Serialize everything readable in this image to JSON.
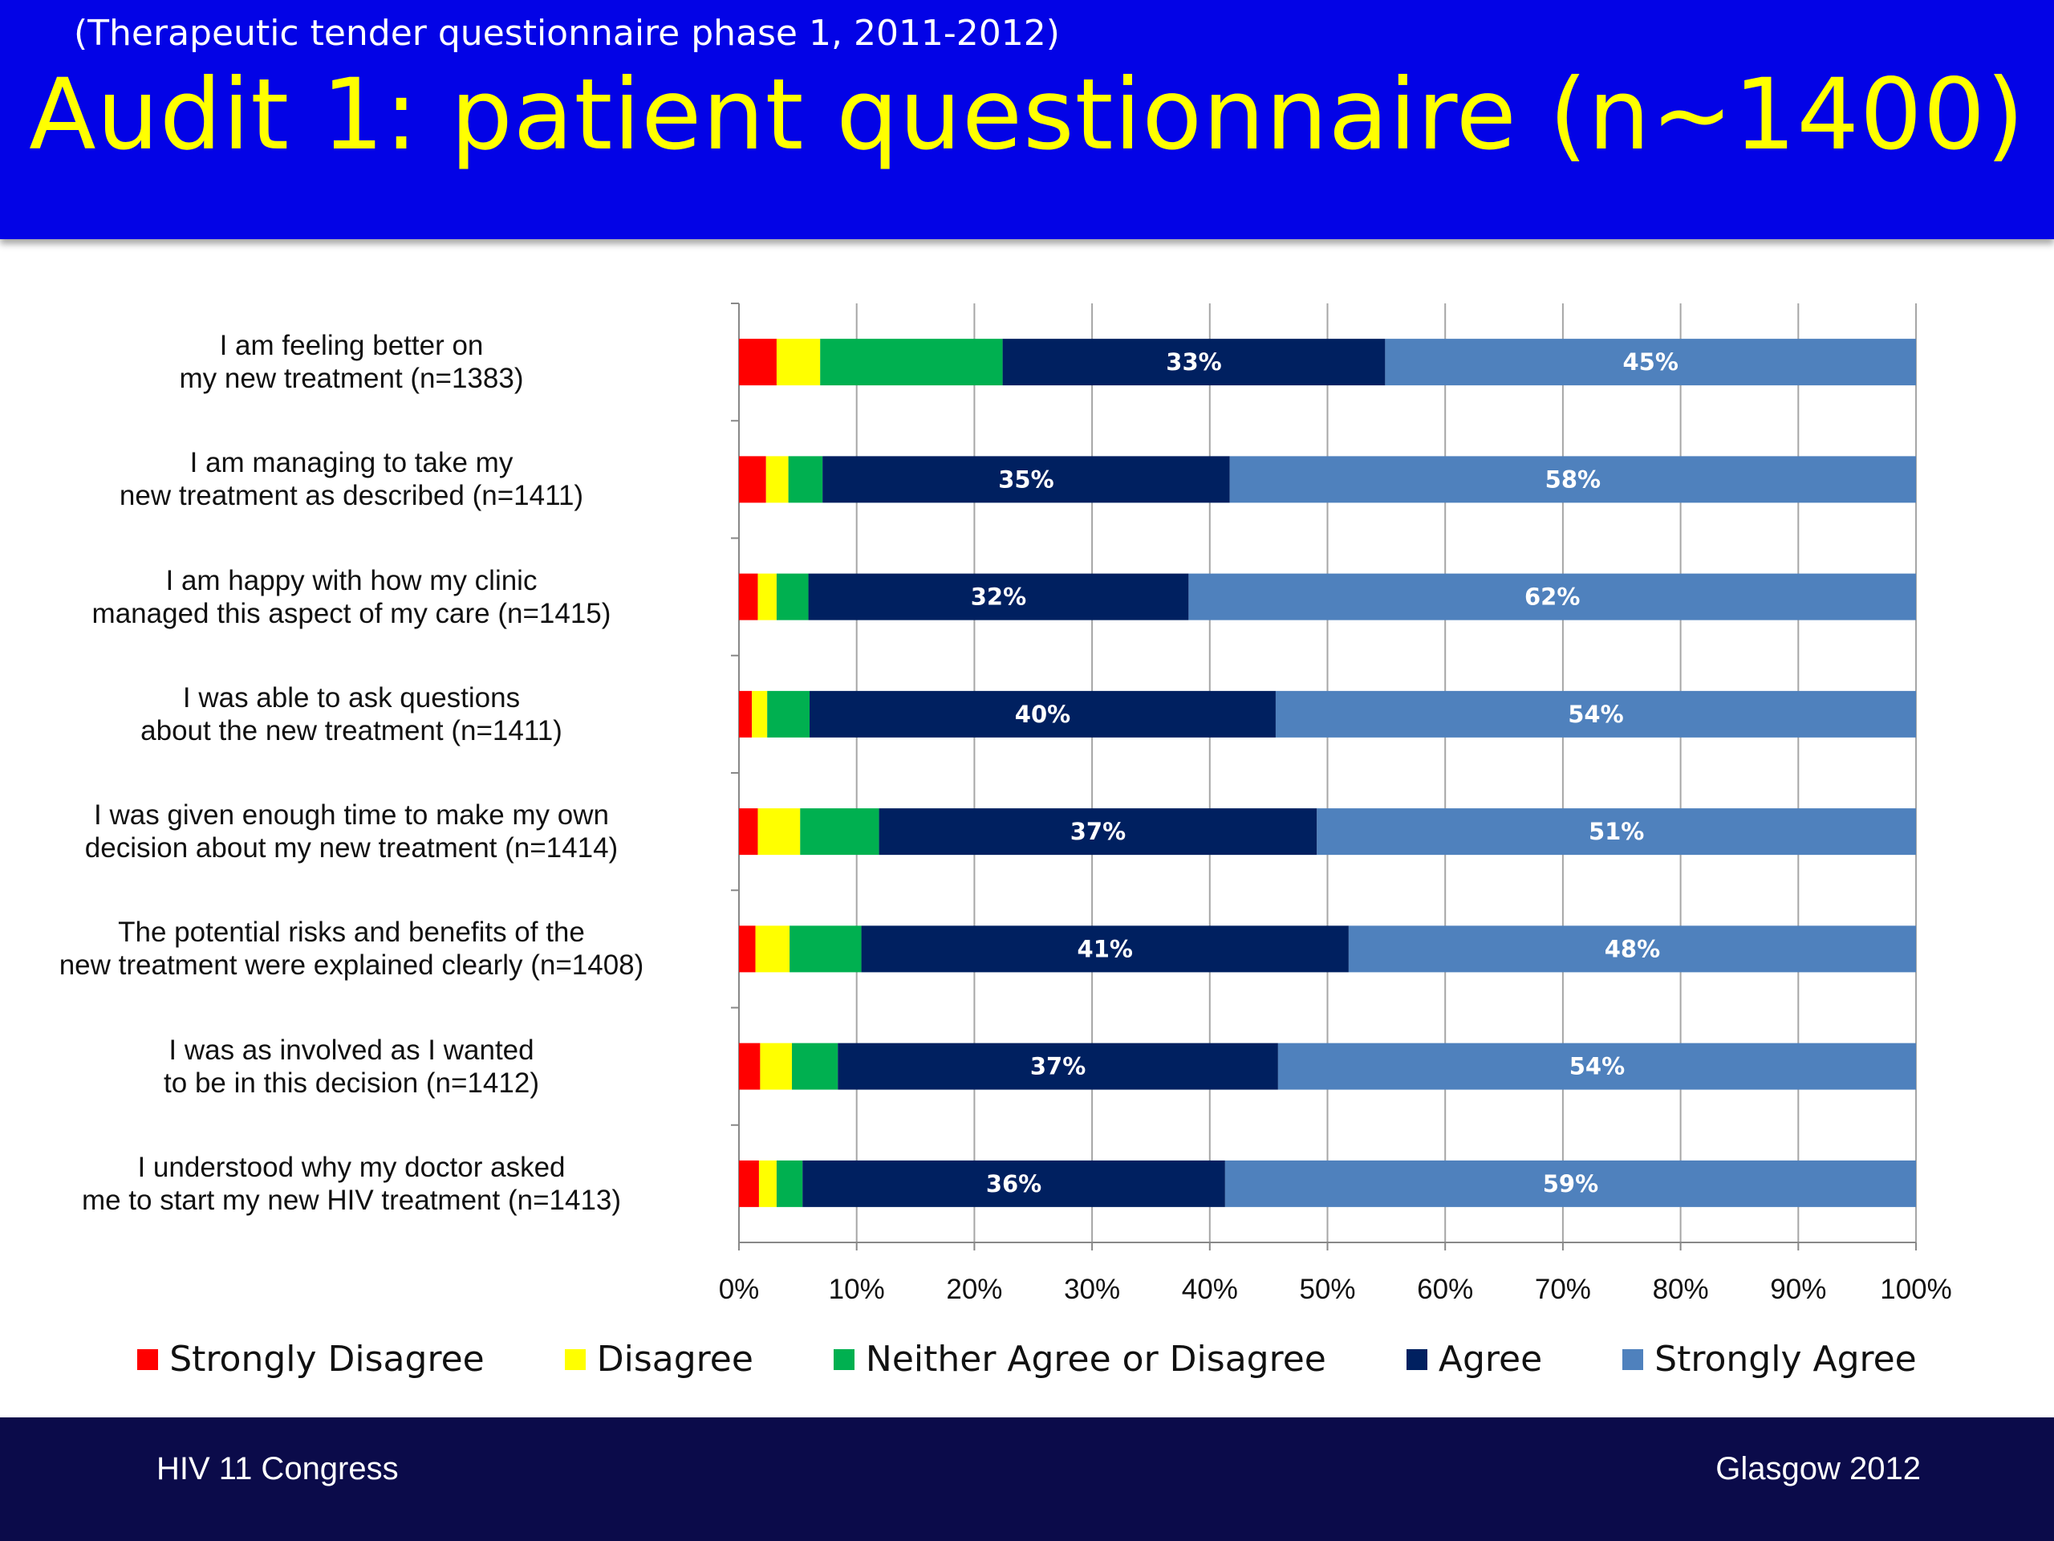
{
  "header": {
    "subtitle": "(Therapeutic tender questionnaire phase 1, 2011-2012)",
    "title": "Audit 1: patient questionnaire (n~1400)"
  },
  "footer": {
    "left": "HIV 11 Congress",
    "right": "Glasgow 2012"
  },
  "colors": {
    "header_bg": "#0303e6",
    "title": "#ffff00",
    "footer_bg": "#0b0b4a",
    "strongly_disagree": "#ff0000",
    "disagree": "#ffff00",
    "neither": "#00b050",
    "agree": "#002060",
    "strongly_agree": "#4f81bd"
  },
  "chart_data": {
    "type": "bar",
    "orientation": "horizontal",
    "stacked": true,
    "percent_stacked": true,
    "categories": [
      "I am feeling better on\nmy new treatment (n=1383)",
      "I am managing to take my\nnew treatment as described (n=1411)",
      "I am happy with how my clinic\nmanaged this aspect of my care (n=1415)",
      "I was able to ask questions\nabout the new treatment (n=1411)",
      "I was given enough time to make my own\ndecision about my new treatment (n=1414)",
      "The potential risks and benefits of the\nnew treatment were explained clearly (n=1408)",
      "I was as involved as I wanted\nto be in this decision (n=1412)",
      "I understood why my doctor asked\nme to start my new HIV treatment (n=1413)"
    ],
    "series": [
      {
        "name": "Strongly Disagree",
        "color": "#ff0000",
        "values": [
          3.2,
          2.3,
          1.6,
          1.1,
          1.6,
          1.4,
          1.8,
          1.7
        ],
        "labels": [
          "",
          "",
          "",
          "",
          "",
          "",
          "",
          ""
        ]
      },
      {
        "name": "Disagree",
        "color": "#ffff00",
        "values": [
          3.7,
          1.9,
          1.6,
          1.3,
          3.6,
          2.9,
          2.7,
          1.5
        ],
        "labels": [
          "",
          "",
          "",
          "",
          "",
          "",
          "",
          ""
        ]
      },
      {
        "name": "Neither Agree or Disagree",
        "color": "#00b050",
        "values": [
          15.5,
          2.9,
          2.7,
          3.6,
          6.7,
          6.1,
          3.9,
          2.2
        ],
        "labels": [
          "",
          "",
          "",
          "",
          "",
          "",
          "",
          ""
        ]
      },
      {
        "name": "Agree",
        "color": "#002060",
        "values": [
          32.5,
          34.6,
          32.3,
          39.6,
          37.2,
          41.4,
          37.4,
          35.9
        ],
        "labels": [
          "33%",
          "35%",
          "32%",
          "40%",
          "37%",
          "41%",
          "37%",
          "36%"
        ]
      },
      {
        "name": "Strongly Agree",
        "color": "#4f81bd",
        "values": [
          45.1,
          58.3,
          61.8,
          54.4,
          50.9,
          48.2,
          54.2,
          58.7
        ],
        "labels": [
          "45%",
          "58%",
          "62%",
          "54%",
          "51%",
          "48%",
          "54%",
          "59%"
        ]
      }
    ],
    "xlim": [
      0,
      100
    ],
    "xticks": [
      "0%",
      "10%",
      "20%",
      "30%",
      "40%",
      "50%",
      "60%",
      "70%",
      "80%",
      "90%",
      "100%"
    ],
    "grid": true,
    "legend_position": "bottom"
  }
}
